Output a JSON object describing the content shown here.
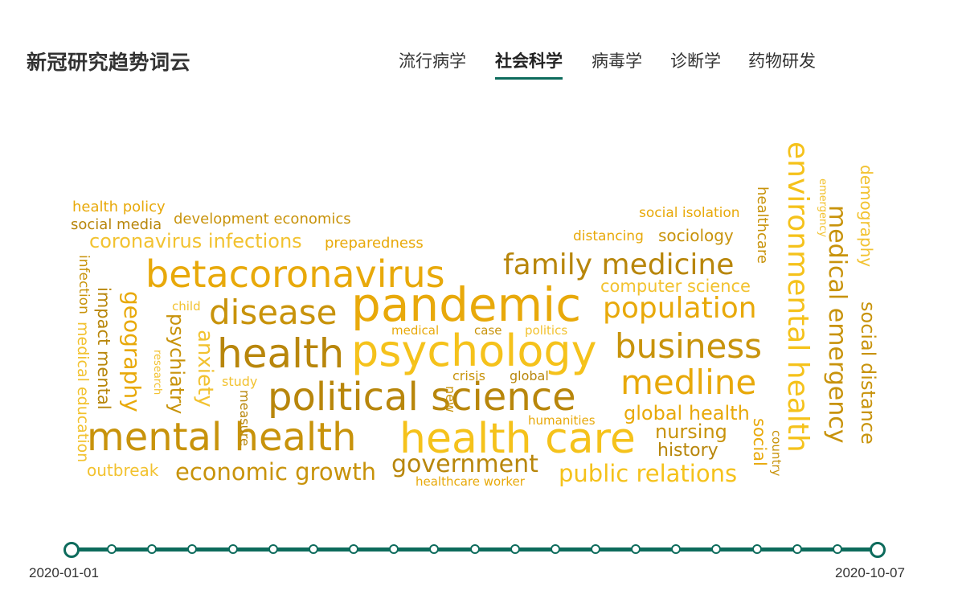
{
  "app": {
    "title": "新冠研究趋势词云"
  },
  "tabs": [
    {
      "label": "流行病学",
      "active": false
    },
    {
      "label": "社会科学",
      "active": true
    },
    {
      "label": "病毒学",
      "active": false
    },
    {
      "label": "诊断学",
      "active": false
    },
    {
      "label": "药物研发",
      "active": false
    }
  ],
  "colors": {
    "accent": "#0d6b5c",
    "words": [
      "#e8a90a",
      "#c8930b",
      "#f5c21b",
      "#b8860b",
      "#f2c230",
      "#d69f10"
    ]
  },
  "wordcloud": {
    "words": [
      "pandemic",
      "psychology",
      "health care",
      "mental health",
      "political science",
      "health",
      "betacoronavirus",
      "disease",
      "family medicine",
      "population",
      "business",
      "medline",
      "government",
      "economic growth",
      "public relations",
      "global health",
      "nursing",
      "history",
      "computer science",
      "coronavirus infections",
      "preparedness",
      "development economics",
      "health policy",
      "social media",
      "social isolation",
      "distancing",
      "sociology",
      "child",
      "medical",
      "case",
      "politics",
      "crisis",
      "global",
      "humanities",
      "study",
      "outbreak",
      "healthcare worker",
      "environmental health",
      "medical emergency",
      "demography",
      "social distance",
      "healthcare",
      "emergency",
      "social",
      "country",
      "geography",
      "anxiety",
      "psychiatry",
      "impact mental",
      "medical education",
      "infection",
      "research",
      "measure",
      "new"
    ]
  },
  "timeline": {
    "start_label": "2020-01-01",
    "end_label": "2020-10-07",
    "stops": 21,
    "selected_index": 20
  }
}
